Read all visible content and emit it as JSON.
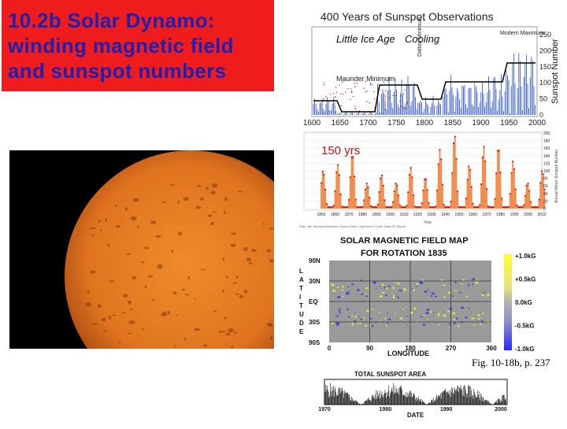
{
  "slide": {
    "title": "10.2b Solar Dynamo: winding magnetic field and sunspot numbers",
    "caption": "Fig. 10-18b, p. 237"
  },
  "colors": {
    "title_bg": "#ee1c1c",
    "title_text": "#1f1fb0",
    "sun_orange": "#e0741c",
    "bar_fill": "#f08a4b",
    "dot_red": "#d01818"
  },
  "sunspot400": {
    "title": "400 Years of Sunspot Observations",
    "ylabel": "Sunspot Number",
    "annotations": {
      "little_ice_age": "Little Ice Age",
      "cooling": "Cooling",
      "dalton": "Dalton Minimum",
      "modern": "Modern Maximum",
      "maunder": "Maunder Minimum"
    },
    "xticks": [
      "1600",
      "1650",
      "1700",
      "1750",
      "1800",
      "1850",
      "1900",
      "1950",
      "2000"
    ],
    "yticks": [
      "0",
      "50",
      "100",
      "150",
      "200",
      "250"
    ]
  },
  "sunspot150": {
    "label": "150 yrs",
    "ylabel": "Annual Mean Sunspot Number",
    "xlabel": "Year",
    "source": "Reg. Van Sunspot Minimum Cycles Data, Leig Bosch Cycler Data (P) Signal",
    "xticks": [
      "1850",
      "1860",
      "1870",
      "1880",
      "1890",
      "1900",
      "1910",
      "1920",
      "1930",
      "1940",
      "1950",
      "1960",
      "1970",
      "1980",
      "1990",
      "2000",
      "2010"
    ],
    "yticks": [
      "0",
      "20",
      "40",
      "60",
      "80",
      "100",
      "120",
      "140",
      "160",
      "180",
      "200"
    ]
  },
  "magmap": {
    "title": "SOLAR MAGNETIC FIELD MAP",
    "subtitle": "FOR ROTATION 1835",
    "ylabel_letters": [
      "L",
      "A",
      "T",
      "I",
      "T",
      "U",
      "D",
      "E"
    ],
    "xlabel": "LONGITUDE",
    "yticks": [
      "90N",
      "30N",
      "EQ",
      "30S",
      "90S"
    ],
    "xticks": [
      "0",
      "90",
      "180",
      "270",
      "360"
    ],
    "scale": [
      "+1.0kG",
      "+0.5kG",
      "0.0kG",
      "-0.5kG",
      "-1.0kG"
    ]
  },
  "area": {
    "title": "TOTAL SUNSPOT AREA",
    "xlabel": "DATE",
    "xticks": [
      "1970",
      "1980",
      "1990",
      "2000"
    ]
  }
}
